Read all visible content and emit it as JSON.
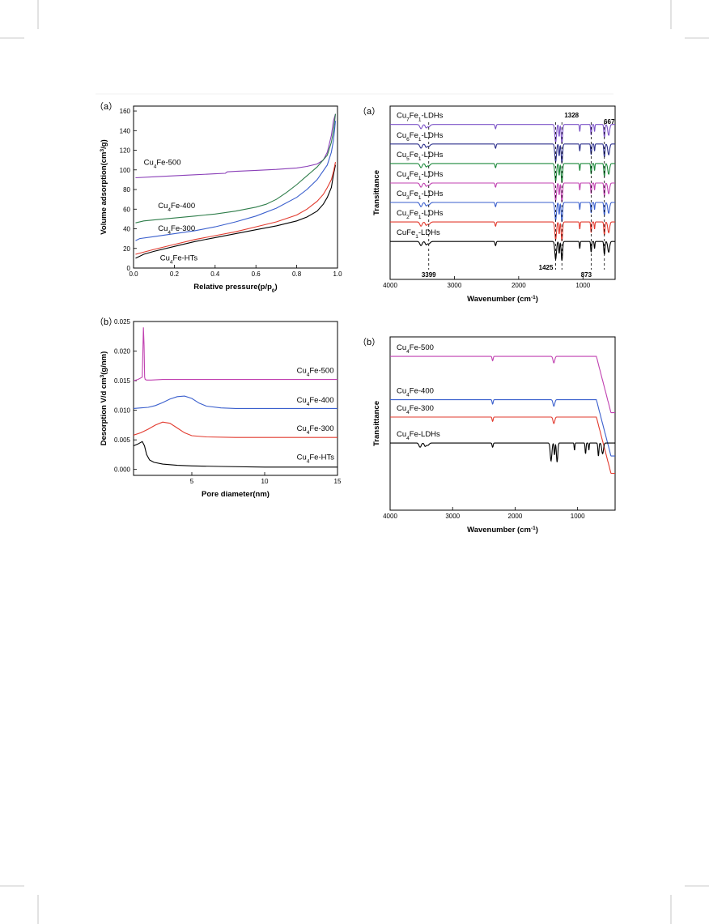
{
  "chart_data": [
    {
      "id": "bet",
      "type": "line",
      "panel_label": "（a）",
      "xlabel": "Relative pressure(p/p",
      "xlabel_sub": "0",
      "xlabel_end": ")",
      "ylabel": "Volume adsorption(cm",
      "ylabel_sup": "3",
      "ylabel_end": "/g)",
      "xlim": [
        0,
        1.0
      ],
      "ylim": [
        0,
        165
      ],
      "xticks": [
        "0.0",
        "0.2",
        "0.4",
        "0.6",
        "0.8",
        "1.0"
      ],
      "xtick_values": [
        0,
        0.2,
        0.4,
        0.6,
        0.8,
        1.0
      ],
      "yticks": [
        "0",
        "20",
        "40",
        "60",
        "80",
        "100",
        "120",
        "140",
        "160"
      ],
      "ytick_values": [
        0,
        20,
        40,
        60,
        80,
        100,
        120,
        140,
        160
      ],
      "series": [
        {
          "name_pre": "Cu",
          "name_sub": "4",
          "name_post": "Fe-500",
          "color": "#8a3fb8",
          "x": [
            0.01,
            0.1,
            0.2,
            0.3,
            0.4,
            0.45,
            0.46,
            0.5,
            0.6,
            0.7,
            0.8,
            0.85,
            0.9,
            0.93,
            0.95,
            0.97,
            0.98,
            0.99
          ],
          "y": [
            92,
            93,
            94,
            95,
            96,
            96.5,
            98,
            98.5,
            99.5,
            100.5,
            102,
            103.5,
            106,
            110,
            118,
            135,
            150,
            157
          ]
        },
        {
          "name_pre": "Cu",
          "name_sub": "4",
          "name_post": "Fe-400",
          "color": "#2e7d4a",
          "x": [
            0.01,
            0.05,
            0.1,
            0.2,
            0.3,
            0.4,
            0.5,
            0.6,
            0.65,
            0.7,
            0.75,
            0.8,
            0.85,
            0.9,
            0.95,
            0.97,
            0.98,
            0.99
          ],
          "y": [
            46,
            48,
            49,
            51,
            53,
            55,
            58,
            62,
            65,
            70,
            77,
            85,
            94,
            103,
            115,
            128,
            140,
            157
          ]
        },
        {
          "name_pre": "Cu",
          "name_sub": "4",
          "name_post": "Fe-300",
          "color": "#3a5fcd",
          "x": [
            0.01,
            0.03,
            0.1,
            0.2,
            0.3,
            0.4,
            0.5,
            0.6,
            0.7,
            0.8,
            0.85,
            0.9,
            0.95,
            0.97,
            0.98,
            0.99
          ],
          "y": [
            28,
            30,
            32,
            35,
            38,
            42,
            47,
            53,
            61,
            72,
            80,
            90,
            105,
            118,
            130,
            150
          ]
        },
        {
          "name_pre": "Cu",
          "name_sub": "4",
          "name_post": "Fe-HTs",
          "color": "#000000",
          "x": [
            0.01,
            0.05,
            0.1,
            0.2,
            0.3,
            0.4,
            0.5,
            0.6,
            0.7,
            0.8,
            0.85,
            0.9,
            0.93,
            0.95,
            0.97,
            0.98,
            0.99
          ],
          "y": [
            10,
            14,
            17,
            22,
            27,
            31,
            35,
            39,
            43,
            48,
            52,
            58,
            65,
            72,
            82,
            95,
            105
          ]
        },
        {
          "name": "",
          "color": "#e23a2e",
          "x": [
            0.01,
            0.1,
            0.2,
            0.3,
            0.4,
            0.5,
            0.6,
            0.7,
            0.8,
            0.85,
            0.9,
            0.93,
            0.95,
            0.97,
            0.98,
            0.99
          ],
          "y": [
            14,
            19,
            24,
            29,
            33,
            37,
            42,
            47,
            54,
            60,
            68,
            75,
            82,
            90,
            98,
            108
          ]
        }
      ],
      "labels": [
        {
          "pre": "Cu",
          "sub": "4",
          "post": "Fe-500",
          "x": 0.05,
          "y": 105
        },
        {
          "pre": "Cu",
          "sub": "4",
          "post": "Fe-400",
          "x": 0.12,
          "y": 61
        },
        {
          "pre": "Cu",
          "sub": "4",
          "post": "Fe-300",
          "x": 0.12,
          "y": 38
        },
        {
          "pre": "Cu",
          "sub": "4",
          "post": "Fe-HTs",
          "x": 0.13,
          "y": 8
        }
      ]
    },
    {
      "id": "pore",
      "type": "line",
      "panel_label": "（b）",
      "xlabel": "Pore diameter(nm)",
      "ylabel": "Desorption V/d cm",
      "ylabel_sup": "3",
      "ylabel_end": "(g/nm)",
      "xlim": [
        1,
        15
      ],
      "ylim": [
        -0.001,
        0.025
      ],
      "xticks": [
        "5",
        "10",
        "15"
      ],
      "xtick_values": [
        5,
        10,
        15
      ],
      "yticks": [
        "0.000",
        "0.005",
        "0.010",
        "0.015",
        "0.020",
        "0.025"
      ],
      "ytick_values": [
        0,
        0.005,
        0.01,
        0.015,
        0.02,
        0.025
      ],
      "series": [
        {
          "name_pre": "Cu",
          "name_sub": "4",
          "name_post": "Fe-500",
          "color": "#c040b0",
          "x": [
            1,
            1.3,
            1.6,
            1.68,
            1.72,
            1.76,
            1.8,
            1.9,
            2.2,
            3,
            5,
            8,
            12,
            15
          ],
          "y": [
            0.015,
            0.0152,
            0.0156,
            0.024,
            0.021,
            0.0156,
            0.0152,
            0.0151,
            0.0151,
            0.0152,
            0.0152,
            0.0152,
            0.0152,
            0.0152
          ]
        },
        {
          "name_pre": "Cu",
          "name_sub": "4",
          "name_post": "Fe-400",
          "color": "#3a5fcd",
          "x": [
            1,
            1.5,
            2,
            2.5,
            3,
            3.5,
            4,
            4.5,
            5,
            5.5,
            6,
            7,
            8,
            10,
            12,
            15
          ],
          "y": [
            0.0103,
            0.0104,
            0.0105,
            0.0108,
            0.0113,
            0.0119,
            0.0123,
            0.0124,
            0.012,
            0.0112,
            0.0107,
            0.0104,
            0.0103,
            0.0103,
            0.0103,
            0.0103
          ]
        },
        {
          "name_pre": "Cu",
          "name_sub": "4",
          "name_post": "Fe-300",
          "color": "#e23a2e",
          "x": [
            1,
            1.5,
            2,
            2.5,
            3,
            3.5,
            4,
            4.5,
            5,
            6,
            8,
            10,
            12,
            15
          ],
          "y": [
            0.0058,
            0.0062,
            0.0068,
            0.0075,
            0.008,
            0.0078,
            0.007,
            0.0062,
            0.0057,
            0.0055,
            0.0054,
            0.0054,
            0.0054,
            0.0054
          ]
        },
        {
          "name_pre": "Cu",
          "name_sub": "4",
          "name_post": "Fe-HTs",
          "color": "#000000",
          "x": [
            1,
            1.3,
            1.6,
            1.75,
            1.9,
            2.1,
            2.4,
            3,
            4,
            5,
            7,
            10,
            15
          ],
          "y": [
            0.004,
            0.0043,
            0.0047,
            0.004,
            0.0025,
            0.0016,
            0.0012,
            0.0009,
            0.0007,
            0.0006,
            0.0005,
            0.0004,
            0.0004
          ]
        }
      ],
      "labels": [
        {
          "pre": "Cu",
          "sub": "4",
          "post": "Fe-500",
          "x": 12.2,
          "y": 0.0163
        },
        {
          "pre": "Cu",
          "sub": "4",
          "post": "Fe-400",
          "x": 12.2,
          "y": 0.0113
        },
        {
          "pre": "Cu",
          "sub": "4",
          "post": "Fe-300",
          "x": 12.2,
          "y": 0.0065
        },
        {
          "pre": "Cu",
          "sub": "4",
          "post": "Fe-HTs",
          "x": 12.2,
          "y": 0.0017
        }
      ]
    },
    {
      "id": "ftir_a",
      "type": "line",
      "panel_label": "（a）",
      "xlabel": "Wavenumber (cm",
      "xlabel_sup": "-1",
      "xlabel_end": ")",
      "ylabel": "Transittance",
      "xlim": [
        4000,
        500
      ],
      "ylim": [
        0,
        8
      ],
      "xticks": [
        "4000",
        "3000",
        "2000",
        "1000"
      ],
      "xtick_values": [
        4000,
        3000,
        2000,
        1000
      ],
      "peaks": [
        {
          "label": "3399",
          "x": 3399
        },
        {
          "label": "1425",
          "x": 1425
        },
        {
          "label": "1328",
          "x": 1328
        },
        {
          "label": "873",
          "x": 873
        },
        {
          "label": "667",
          "x": 667
        }
      ],
      "series": [
        {
          "name_pre": "Cu",
          "name_sub": "7",
          "name_post": "Fe",
          "name_sub2": "1",
          "name_post2": "-LDHs",
          "color": "#7b52c7",
          "baseline": 7.15
        },
        {
          "name_pre": "Cu",
          "name_sub": "6",
          "name_post": "Fe",
          "name_sub2": "1",
          "name_post2": "-LDHs",
          "color": "#2c2f8c",
          "baseline": 6.25
        },
        {
          "name_pre": "Cu",
          "name_sub": "5",
          "name_post": "Fe",
          "name_sub2": "1",
          "name_post2": "-LDHs",
          "color": "#1e8a3c",
          "baseline": 5.35
        },
        {
          "name_pre": "Cu",
          "name_sub": "4",
          "name_post": "Fe",
          "name_sub2": "1",
          "name_post2": "-LDHs",
          "color": "#c040b0",
          "baseline": 4.45
        },
        {
          "name_pre": "Cu",
          "name_sub": "3",
          "name_post": "Fe",
          "name_sub2": "1",
          "name_post2": "-LDHs",
          "color": "#3a5fcd",
          "baseline": 3.55
        },
        {
          "name_pre": "Cu",
          "name_sub": "2",
          "name_post": "Fe",
          "name_sub2": "1",
          "name_post2": "-LDHs",
          "color": "#e23a2e",
          "baseline": 2.65
        },
        {
          "name_pre": "Cu",
          "name_sub": "",
          "name_post": "Fe",
          "name_sub2": "1",
          "name_post2": "-LDHs",
          "color": "#000000",
          "baseline": 1.75
        }
      ]
    },
    {
      "id": "ftir_b",
      "type": "line",
      "panel_label": "（b）",
      "xlabel": "Wavenumber (cm",
      "xlabel_sup": "-1",
      "xlabel_end": ")",
      "ylabel": "Transittance",
      "xlim": [
        4000,
        400
      ],
      "ylim": [
        0,
        8
      ],
      "xticks": [
        "4000",
        "3000",
        "2000",
        "1000"
      ],
      "xtick_values": [
        4000,
        3000,
        2000,
        1000
      ],
      "series": [
        {
          "name_pre": "Cu",
          "name_sub": "4",
          "name_post": "Fe-500",
          "color": "#c040b0",
          "baseline": 7.1,
          "kind": "oxide"
        },
        {
          "name_pre": "Cu",
          "name_sub": "4",
          "name_post": "Fe-400",
          "color": "#3a5fcd",
          "baseline": 5.1,
          "kind": "oxide"
        },
        {
          "name_pre": "Cu",
          "name_sub": "4",
          "name_post": "Fe-300",
          "color": "#e23a2e",
          "baseline": 4.3,
          "kind": "oxide"
        },
        {
          "name_pre": "Cu",
          "name_sub": "4",
          "name_post": "Fe-LDHs",
          "color": "#000000",
          "baseline": 3.1,
          "kind": "ldh"
        }
      ]
    }
  ]
}
